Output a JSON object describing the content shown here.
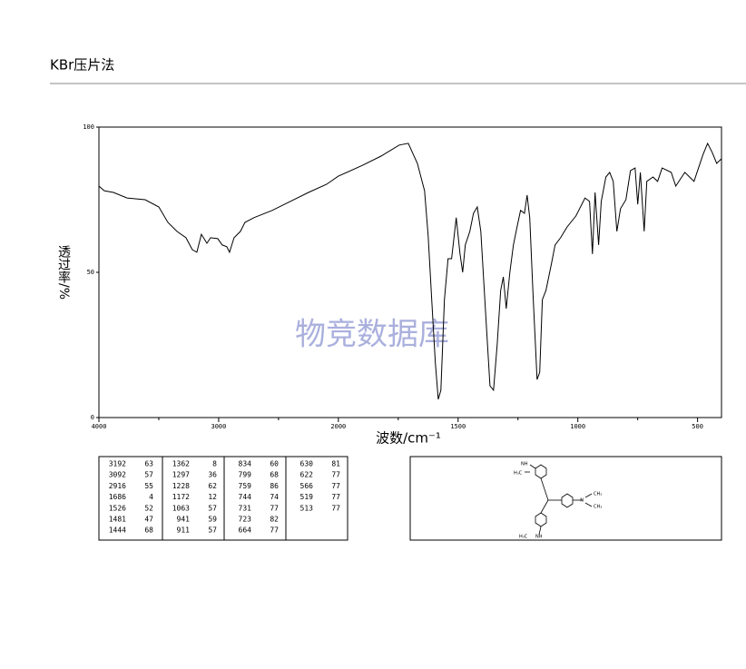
{
  "header": {
    "title": "KBr压片法"
  },
  "chart_data": {
    "type": "line",
    "xlabel": "波数/cm⁻¹",
    "ylabel": "透过率/%",
    "watermark": "物竞数据库",
    "color": "#000000",
    "xlim": [
      4000,
      400
    ],
    "xticks": [
      4000,
      3000,
      2000,
      1500,
      1000,
      500
    ],
    "xminorticks": [
      3500,
      2500,
      1750,
      1250,
      750
    ],
    "ylim": [
      0,
      100
    ],
    "yticks": [
      0,
      50,
      100
    ],
    "x": [
      4000,
      3955,
      3879,
      3765,
      3614,
      3500,
      3424,
      3348,
      3273,
      3220,
      3182,
      3144,
      3098,
      3068,
      3008,
      2970,
      2932,
      2909,
      2871,
      2818,
      2780,
      2705,
      2553,
      2402,
      2250,
      2098,
      2000,
      1898,
      1822,
      1746,
      1708,
      1670,
      1640,
      1625,
      1610,
      1595,
      1583,
      1572,
      1557,
      1542,
      1527,
      1508,
      1492,
      1481,
      1470,
      1451,
      1436,
      1420,
      1405,
      1386,
      1367,
      1352,
      1337,
      1322,
      1311,
      1299,
      1284,
      1269,
      1254,
      1239,
      1223,
      1212,
      1201,
      1186,
      1170,
      1159,
      1148,
      1133,
      1110,
      1095,
      1072,
      1045,
      1008,
      970,
      951,
      939,
      928,
      913,
      902,
      883,
      867,
      852,
      837,
      822,
      799,
      780,
      761,
      750,
      739,
      723,
      712,
      686,
      667,
      648,
      610,
      591,
      553,
      515,
      477,
      458,
      439,
      420,
      400
    ],
    "values": [
      79.7,
      78.1,
      77.5,
      75.6,
      75,
      72.5,
      67.2,
      64.1,
      61.9,
      57.8,
      56.9,
      63.1,
      60,
      61.9,
      61.6,
      59.4,
      58.8,
      56.9,
      61.9,
      64.1,
      67.2,
      68.8,
      71.3,
      74.4,
      77.5,
      80.3,
      83.1,
      86.9,
      90,
      93.8,
      94.4,
      87.5,
      78.1,
      62.5,
      40.6,
      18.8,
      6.3,
      9.4,
      40.6,
      54.7,
      54.7,
      68.8,
      56.3,
      50,
      59.4,
      64.1,
      70.3,
      72.5,
      64.1,
      37.5,
      10.9,
      9.4,
      25,
      43.8,
      48.4,
      37.5,
      50,
      59.4,
      65.6,
      71.3,
      70.3,
      76.6,
      68.8,
      40.6,
      13.1,
      15.6,
      40.6,
      43.8,
      53.1,
      59.4,
      61.9,
      65.6,
      69.4,
      75.6,
      74.4,
      56.3,
      77.5,
      59.4,
      74.4,
      82.8,
      84.4,
      81.3,
      64.1,
      71.9,
      75,
      85,
      85.9,
      73.4,
      84.4,
      64.1,
      81.3,
      82.8,
      81.3,
      85.9,
      84.4,
      79.7,
      84.4,
      81.3,
      90.6,
      94.4,
      91.3,
      87.5,
      89.1
    ]
  },
  "peak_table": {
    "columns": [
      [
        [
          3192,
          63
        ],
        [
          3092,
          57
        ],
        [
          2916,
          55
        ],
        [
          1686,
          4
        ],
        [
          1526,
          52
        ],
        [
          1481,
          47
        ],
        [
          1444,
          68
        ]
      ],
      [
        [
          1362,
          8
        ],
        [
          1297,
          36
        ],
        [
          1228,
          62
        ],
        [
          1172,
          12
        ],
        [
          1063,
          57
        ],
        [
          941,
          59
        ],
        [
          911,
          57
        ]
      ],
      [
        [
          834,
          60
        ],
        [
          799,
          68
        ],
        [
          759,
          86
        ],
        [
          744,
          74
        ],
        [
          731,
          77
        ],
        [
          723,
          82
        ],
        [
          664,
          77
        ]
      ],
      [
        [
          630,
          81
        ],
        [
          622,
          77
        ],
        [
          566,
          77
        ],
        [
          519,
          77
        ],
        [
          513,
          77
        ]
      ]
    ]
  },
  "structure": {
    "labels": [
      "NH",
      "H₃C",
      "N",
      "CH₃",
      "CH₃",
      "H₃C",
      "NH"
    ]
  }
}
